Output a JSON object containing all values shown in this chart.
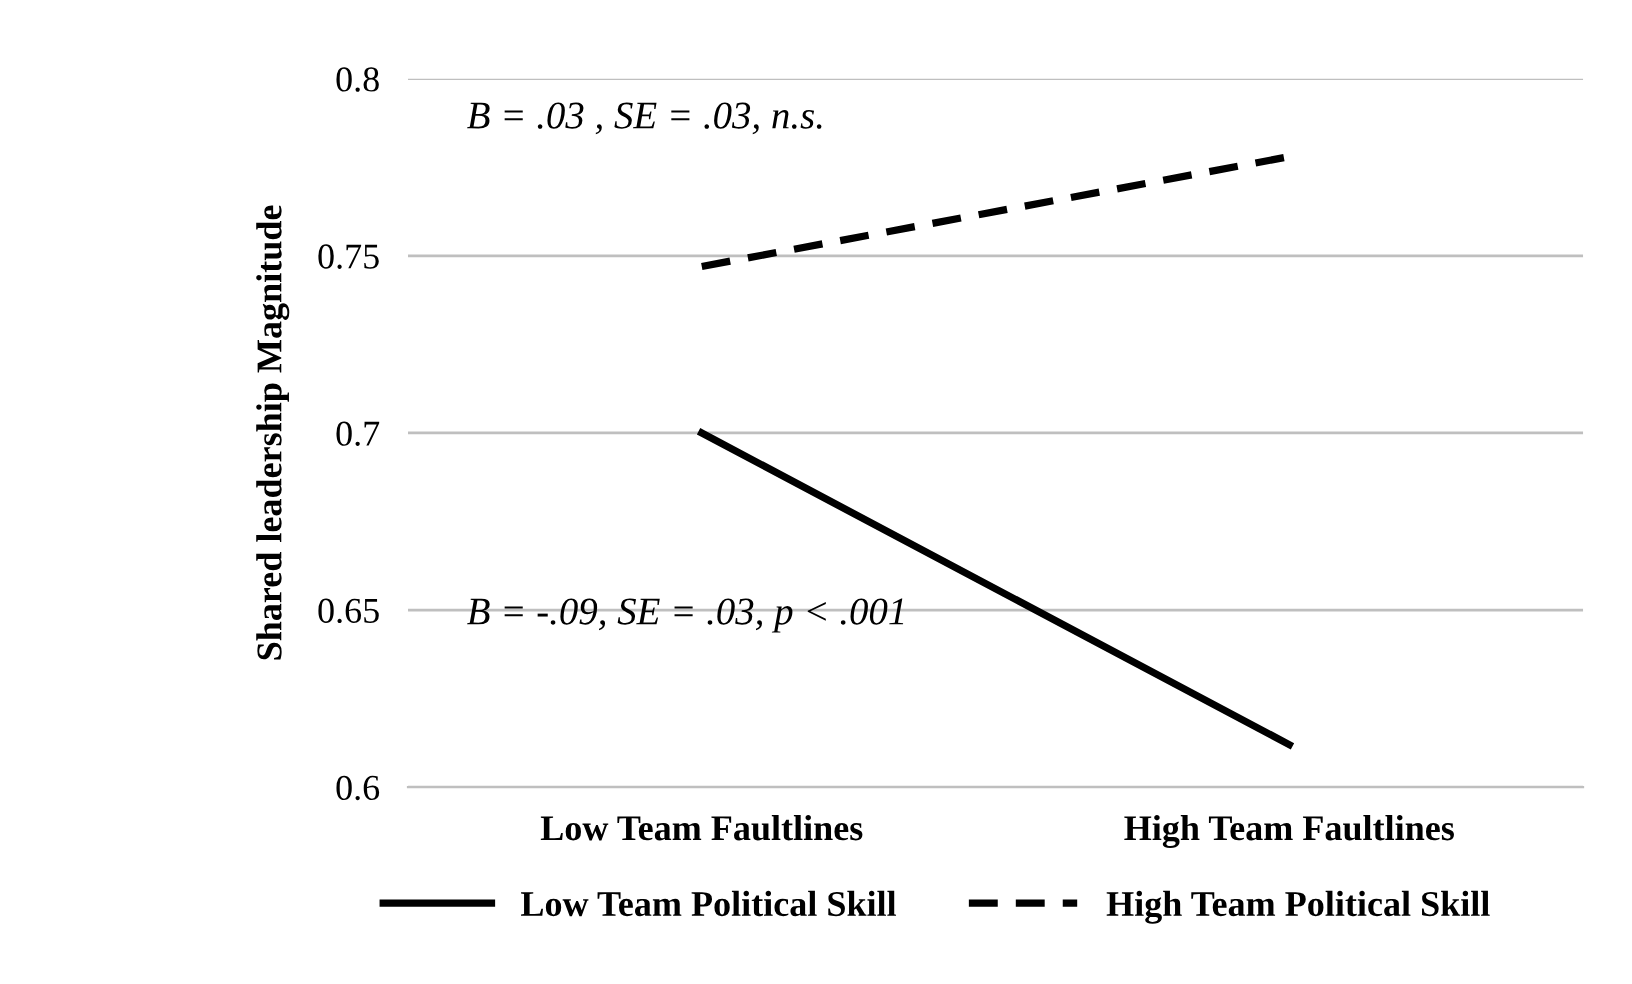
{
  "chart_data": {
    "type": "line",
    "ylabel": "Shared leadership Magnitude",
    "categories": [
      "Low Team Faultlines",
      "High Team Faultlines"
    ],
    "series": [
      {
        "name": "Low Team Political Skill",
        "color": "#000000",
        "values": [
          0.7,
          0.612
        ],
        "line_style": "solid"
      },
      {
        "name": "High Team Political Skill",
        "color": "#000000",
        "values": [
          0.747,
          0.778
        ],
        "line_style": "dashed"
      }
    ],
    "ylim": [
      0.6,
      0.8
    ],
    "yticks": [
      0.6,
      0.65,
      0.7,
      0.75,
      0.8
    ],
    "grid": "y",
    "legend": "bottom",
    "marker": "none",
    "annotations": [
      "B = .03 , SE = .03, n.s.",
      "B = -.09, SE = .03, p < .001"
    ]
  }
}
